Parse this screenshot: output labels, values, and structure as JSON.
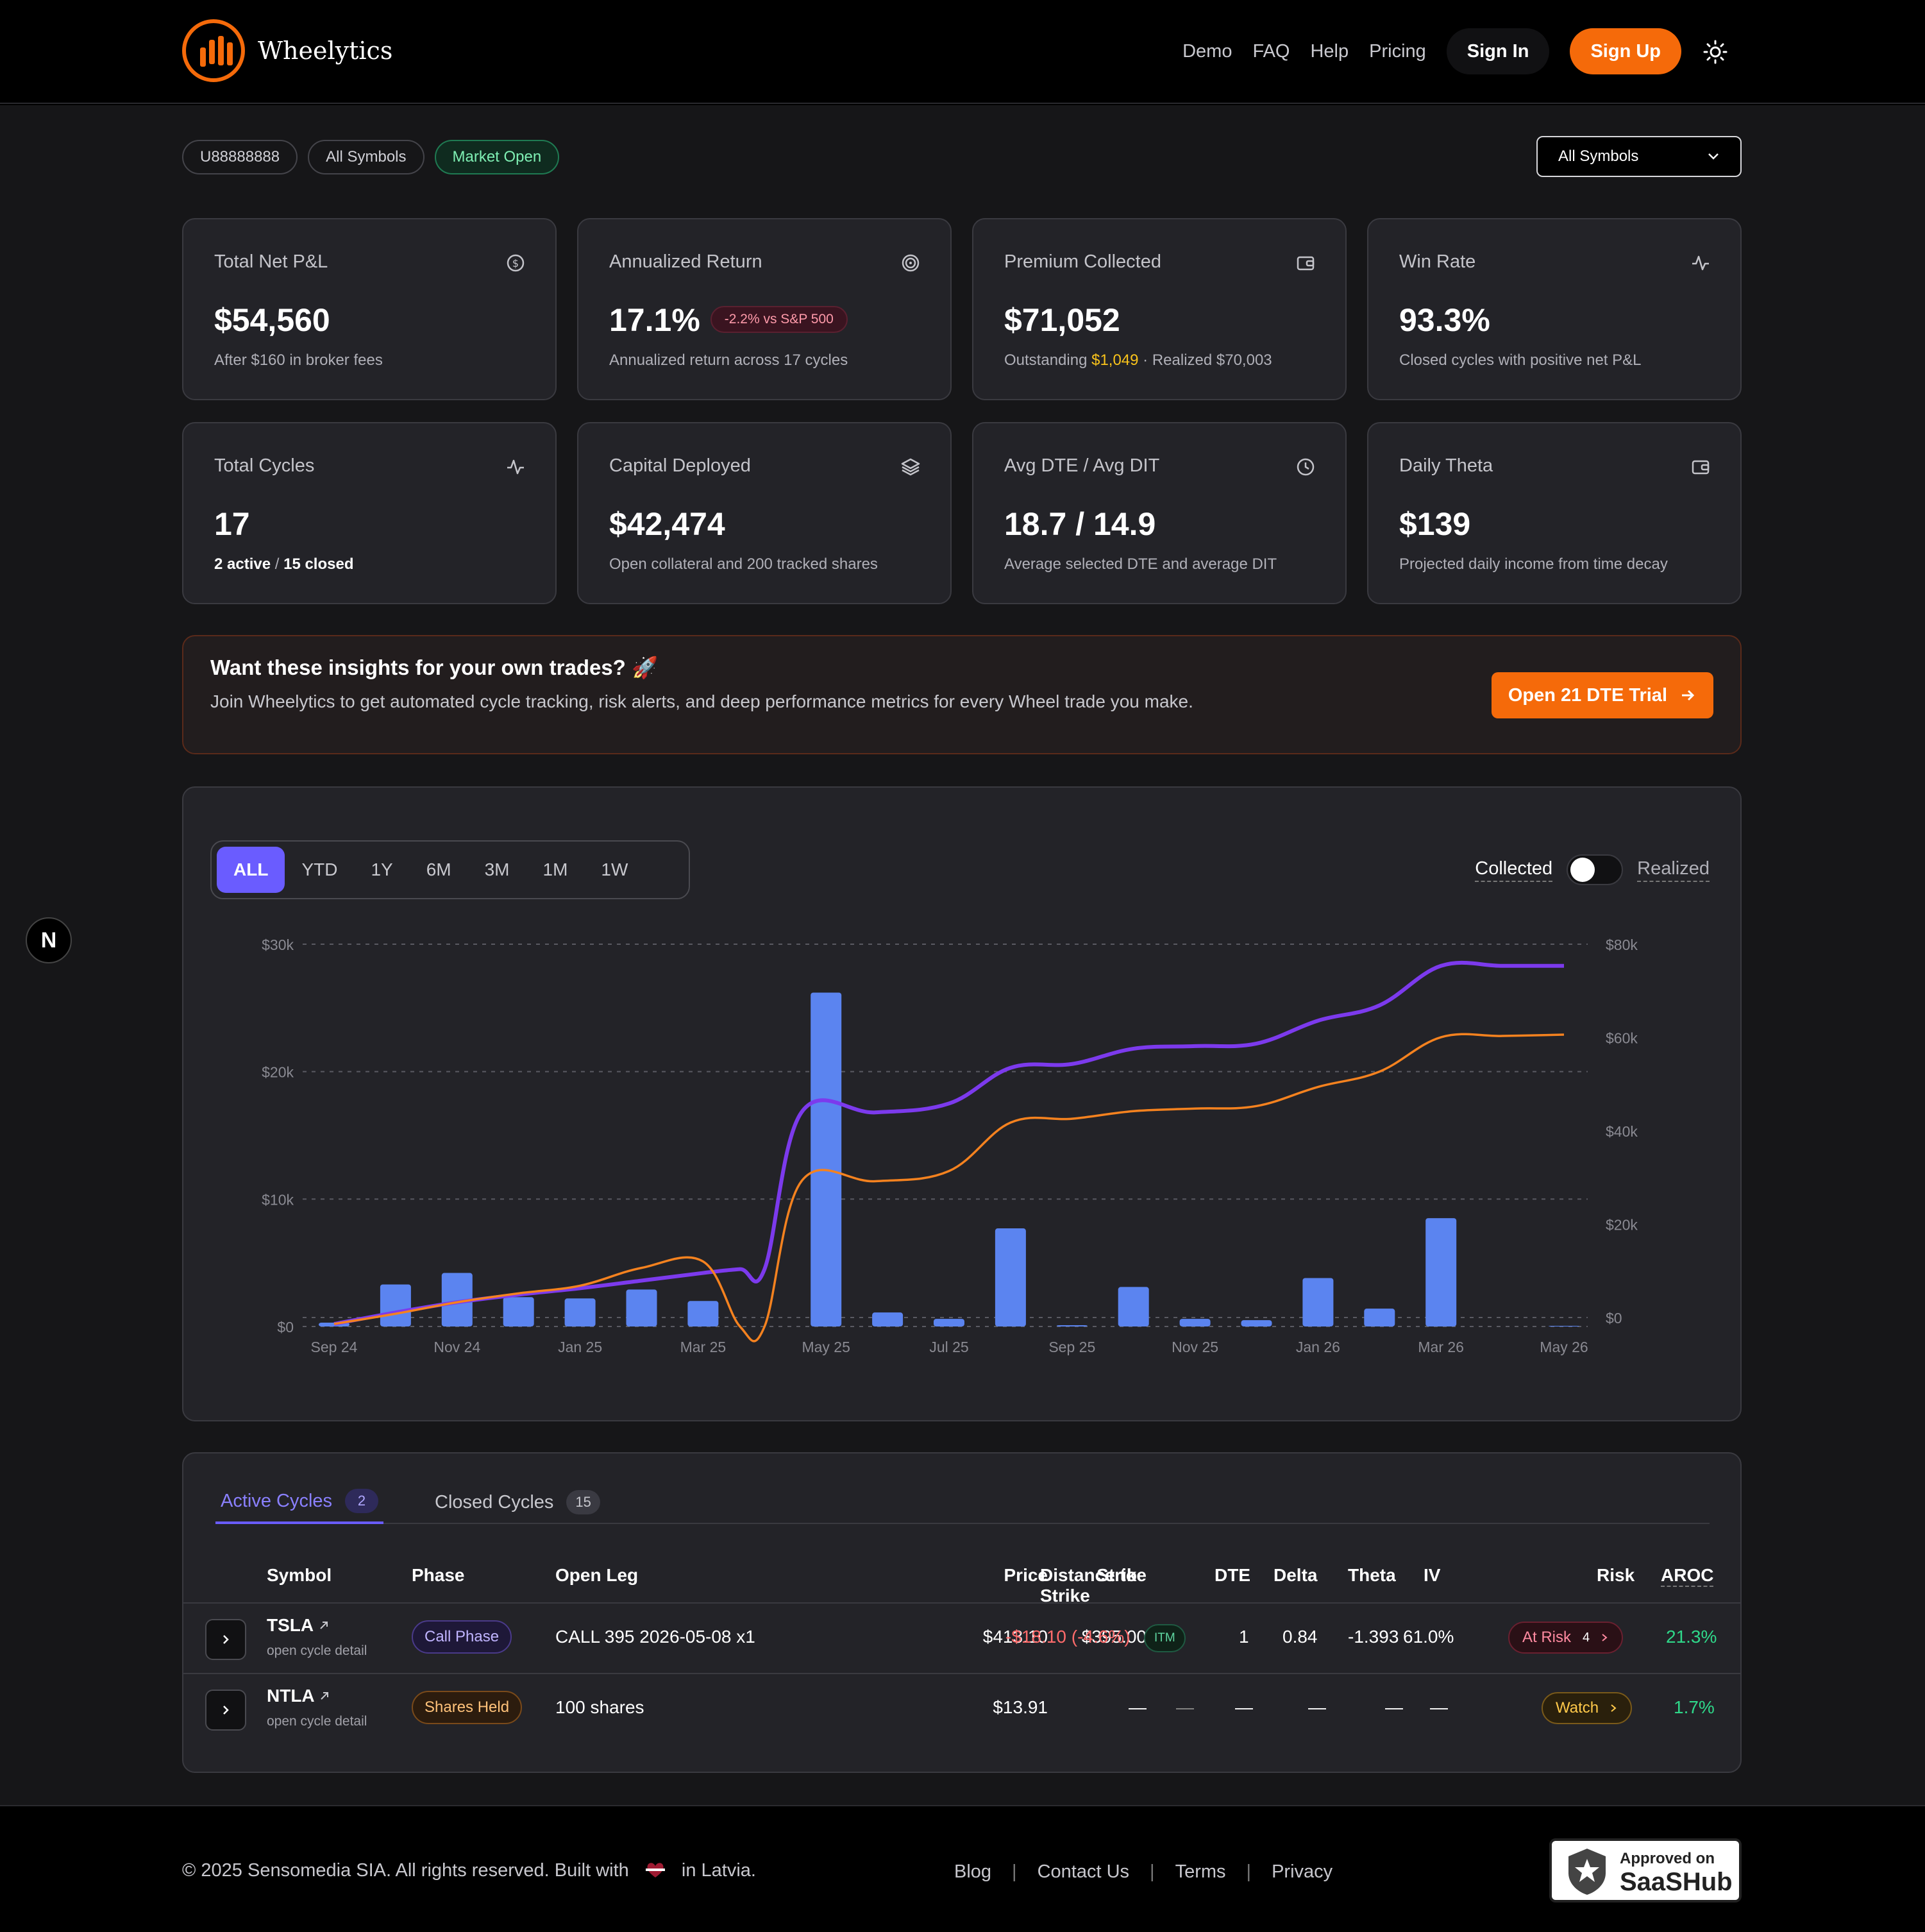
{
  "header": {
    "brand": "Wheelytics",
    "nav": [
      "Demo",
      "FAQ",
      "Help",
      "Pricing"
    ],
    "sign_in": "Sign In",
    "sign_up": "Sign Up"
  },
  "filters": {
    "chips": [
      "U88888888",
      "All Symbols",
      "Market Open"
    ],
    "select_value": "All Symbols"
  },
  "kpis": [
    {
      "title": "Total Net P&L",
      "value": "$54,560",
      "sub": "After $160 in broker fees",
      "icon": "dollar-circle-icon"
    },
    {
      "title": "Annualized Return",
      "value": "17.1%",
      "badge": "-2.2% vs S&P 500",
      "sub": "Annualized return across 17 cycles",
      "icon": "target-icon"
    },
    {
      "title": "Premium Collected",
      "value": "$71,052",
      "sub_prefix": "Outstanding ",
      "sub_highlight": "$1,049",
      "sub_suffix": " · Realized $70,003",
      "icon": "wallet-icon"
    },
    {
      "title": "Win Rate",
      "value": "93.3%",
      "sub": "Closed cycles with positive net P&L",
      "icon": "activity-icon"
    },
    {
      "title": "Total Cycles",
      "value": "17",
      "sub_a": "2 active",
      "sub_sep": " / ",
      "sub_b": "15 closed",
      "icon": "activity-icon"
    },
    {
      "title": "Capital Deployed",
      "value": "$42,474",
      "sub": "Open collateral and 200 tracked shares",
      "icon": "layers-icon"
    },
    {
      "title": "Avg DTE / Avg DIT",
      "value": "18.7 / 14.9",
      "sub": "Average selected DTE and average DIT",
      "icon": "clock-icon"
    },
    {
      "title": "Daily Theta",
      "value": "$139",
      "sub": "Projected daily income from time decay",
      "icon": "wallet-icon"
    }
  ],
  "cta": {
    "heading": "Want these insights for your own trades? 🚀",
    "body": "Join Wheelytics to get automated cycle tracking, risk alerts, and deep performance metrics for every Wheel trade you make.",
    "button": "Open 21 DTE Trial"
  },
  "chart_controls": {
    "ranges": [
      "ALL",
      "YTD",
      "1Y",
      "6M",
      "3M",
      "1M",
      "1W"
    ],
    "active_range": "ALL",
    "toggle_left": "Collected",
    "toggle_right": "Realized"
  },
  "chart_data": {
    "type": "bar",
    "x_tick_labels": [
      "Sep 24",
      "Nov 24",
      "Jan 25",
      "Mar 25",
      "May 25",
      "Jul 25",
      "Sep 25",
      "Nov 25",
      "Jan 26",
      "Mar 26",
      "May 26"
    ],
    "y_left_ticks": [
      "$0",
      "$10k",
      "$20k",
      "$30k"
    ],
    "y_right_ticks": [
      "$0",
      "$20k",
      "$40k",
      "$60k",
      "$80k"
    ],
    "ylim_left": [
      0,
      30000
    ],
    "ylim_right": [
      0,
      80000
    ],
    "grid": "horizontal-dashed",
    "colors": {
      "bars": "#5b84f0",
      "purple_line": "#7c3aed",
      "orange_line": "#f5821f"
    },
    "bars": {
      "x": [
        "Sep 24",
        "Oct 24",
        "Nov 24",
        "Dec 24",
        "Jan 25",
        "Feb 25",
        "Mar 25",
        "Apr 25",
        "May 25",
        "Jun 25",
        "Jul 25",
        "Aug 25",
        "Sep 25",
        "Oct 25",
        "Nov 25",
        "Dec 25",
        "Jan 26",
        "Feb 26",
        "Mar 26",
        "Apr 26",
        "May 26"
      ],
      "values": [
        300,
        3300,
        4200,
        2300,
        2200,
        2900,
        2000,
        0,
        26200,
        1100,
        600,
        7700,
        100,
        3100,
        600,
        500,
        3800,
        1400,
        8500,
        0,
        50
      ]
    },
    "series": [
      {
        "x": [
          "Sep 24",
          "Oct 24",
          "Nov 24",
          "Dec 24",
          "Jan 25",
          "Feb 25",
          "Mar 25",
          "Mid Apr 25",
          "Apr 25",
          "May 25",
          "Jun 25",
          "Jul 25",
          "Aug 25",
          "Sep 25",
          "Oct 25",
          "Nov 25",
          "Dec 25",
          "Jan 26",
          "Feb 26",
          "Mar 26",
          "Apr 26",
          "May 26"
        ],
        "values": [
          200,
          1100,
          1900,
          2500,
          3000,
          3600,
          4200,
          4500,
          4500,
          16800,
          16800,
          17500,
          20300,
          20600,
          21800,
          22000,
          22200,
          24000,
          25200,
          28300,
          28300,
          28300
        ]
      },
      {
        "x": [
          "Sep 24",
          "Oct 24",
          "Nov 24",
          "Dec 24",
          "Jan 25",
          "Feb 25",
          "Mar 25",
          "Mid Apr 25",
          "Apr 25",
          "May 25",
          "Jun 25",
          "Jul 25",
          "Aug 25",
          "Sep 25",
          "Oct 25",
          "Nov 25",
          "Dec 25",
          "Jan 26",
          "Feb 26",
          "Mar 26",
          "Apr 26",
          "May 26"
        ],
        "values": [
          200,
          1000,
          1900,
          2600,
          3200,
          4600,
          5100,
          0,
          0,
          11400,
          11400,
          12200,
          16000,
          16300,
          16900,
          17100,
          17300,
          18800,
          20000,
          22700,
          22800,
          22900
        ]
      }
    ]
  },
  "cycles": {
    "tabs": [
      {
        "label": "Active Cycles",
        "count": "2"
      },
      {
        "label": "Closed Cycles",
        "count": "15"
      }
    ],
    "headers": [
      "Symbol",
      "Phase",
      "Open Leg",
      "Price",
      "Strike",
      "Distance to Strike",
      "DTE",
      "Delta",
      "Theta",
      "IV",
      "Risk",
      "AROC"
    ],
    "rows": [
      {
        "symbol": "TSLA",
        "sub": "open cycle detail",
        "phase": "Call Phase",
        "open_leg": "CALL 395 2026-05-08 x1",
        "price": "$413.10",
        "strike": "$395.00",
        "distance": "-$18.10 (-4.6%)",
        "itm": "ITM",
        "dte": "1",
        "delta": "0.84",
        "theta": "-1.393",
        "iv": "61.0%",
        "risk": "At Risk",
        "risk_count": "4",
        "aroc": "21.3%"
      },
      {
        "symbol": "NTLA",
        "sub": "open cycle detail",
        "phase": "Shares Held",
        "open_leg": "100 shares",
        "price": "$13.91",
        "strike": "—",
        "distance": "—",
        "dte": "—",
        "delta": "—",
        "theta": "—",
        "iv": "—",
        "risk": "Watch",
        "aroc": "1.7%"
      }
    ]
  },
  "footer": {
    "copy_left": "© 2025 Sensomedia SIA. All rights reserved. Built with",
    "copy_right": "in Latvia.",
    "links": [
      "Blog",
      "Contact Us",
      "Terms",
      "Privacy"
    ],
    "badge_top": "Approved on",
    "badge_bottom": "SaaSHub"
  },
  "floating_badge": "N"
}
